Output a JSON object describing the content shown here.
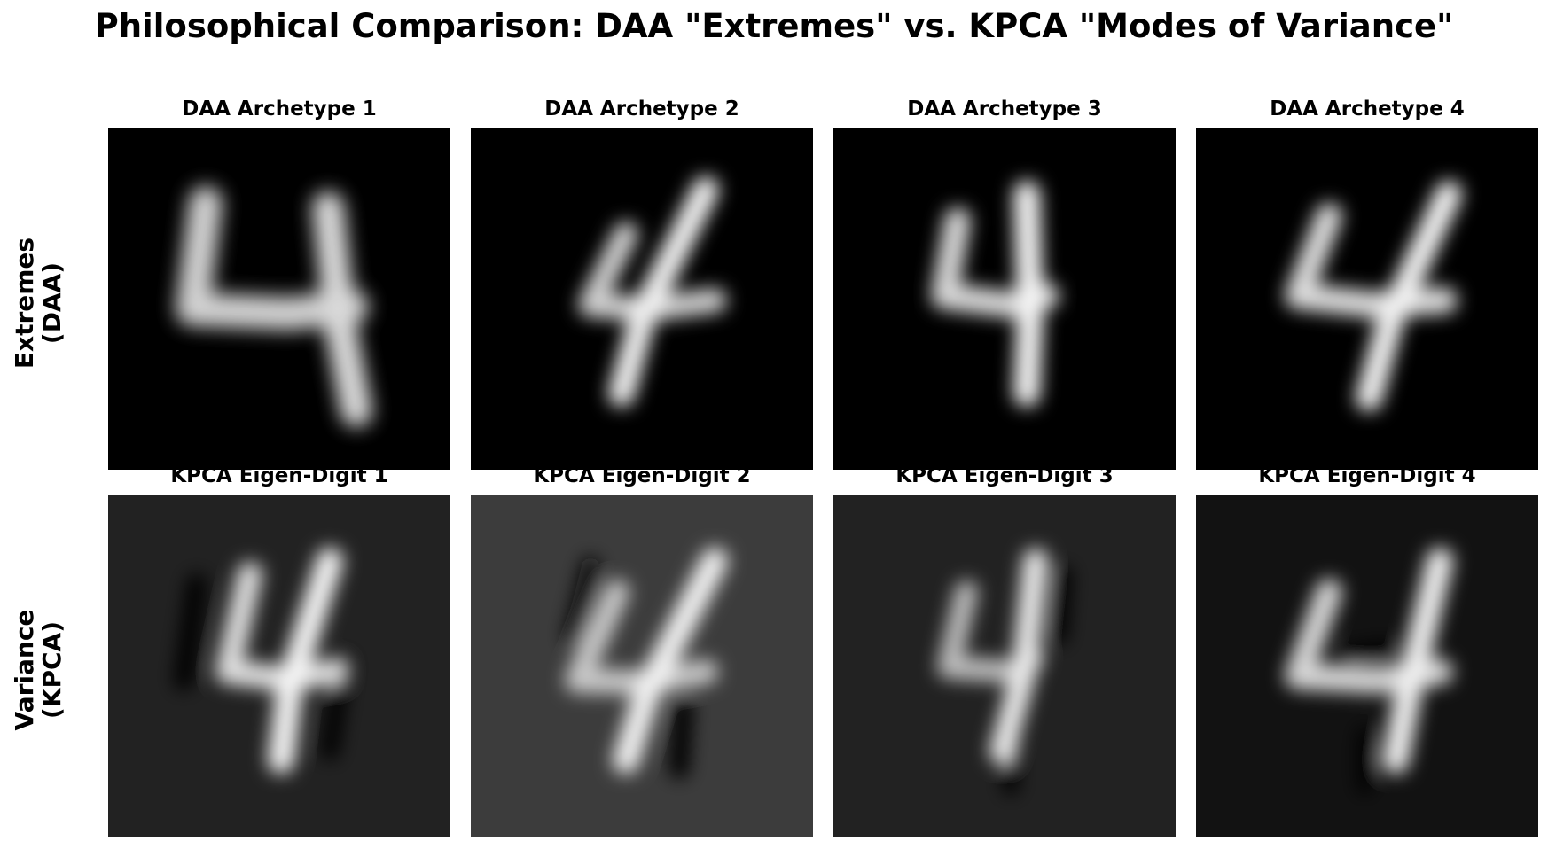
{
  "title": "Philosophical Comparison: DAA \"Extremes\" vs. KPCA \"Modes of Variance\"",
  "rows": [
    {
      "label_line1": "Extremes",
      "label_line2": "(DAA)",
      "panels": [
        {
          "title": "DAA Archetype 1",
          "background": "#000000"
        },
        {
          "title": "DAA Archetype 2",
          "background": "#000000"
        },
        {
          "title": "DAA Archetype 3",
          "background": "#000000"
        },
        {
          "title": "DAA Archetype 4",
          "background": "#000000"
        }
      ]
    },
    {
      "label_line1": "Variance",
      "label_line2": "(KPCA)",
      "panels": [
        {
          "title": "KPCA Eigen-Digit 1",
          "background": "#222222"
        },
        {
          "title": "KPCA Eigen-Digit 2",
          "background": "#3c3c3c"
        },
        {
          "title": "KPCA Eigen-Digit 3",
          "background": "#222222"
        },
        {
          "title": "KPCA Eigen-Digit 4",
          "background": "#121212"
        }
      ]
    }
  ]
}
